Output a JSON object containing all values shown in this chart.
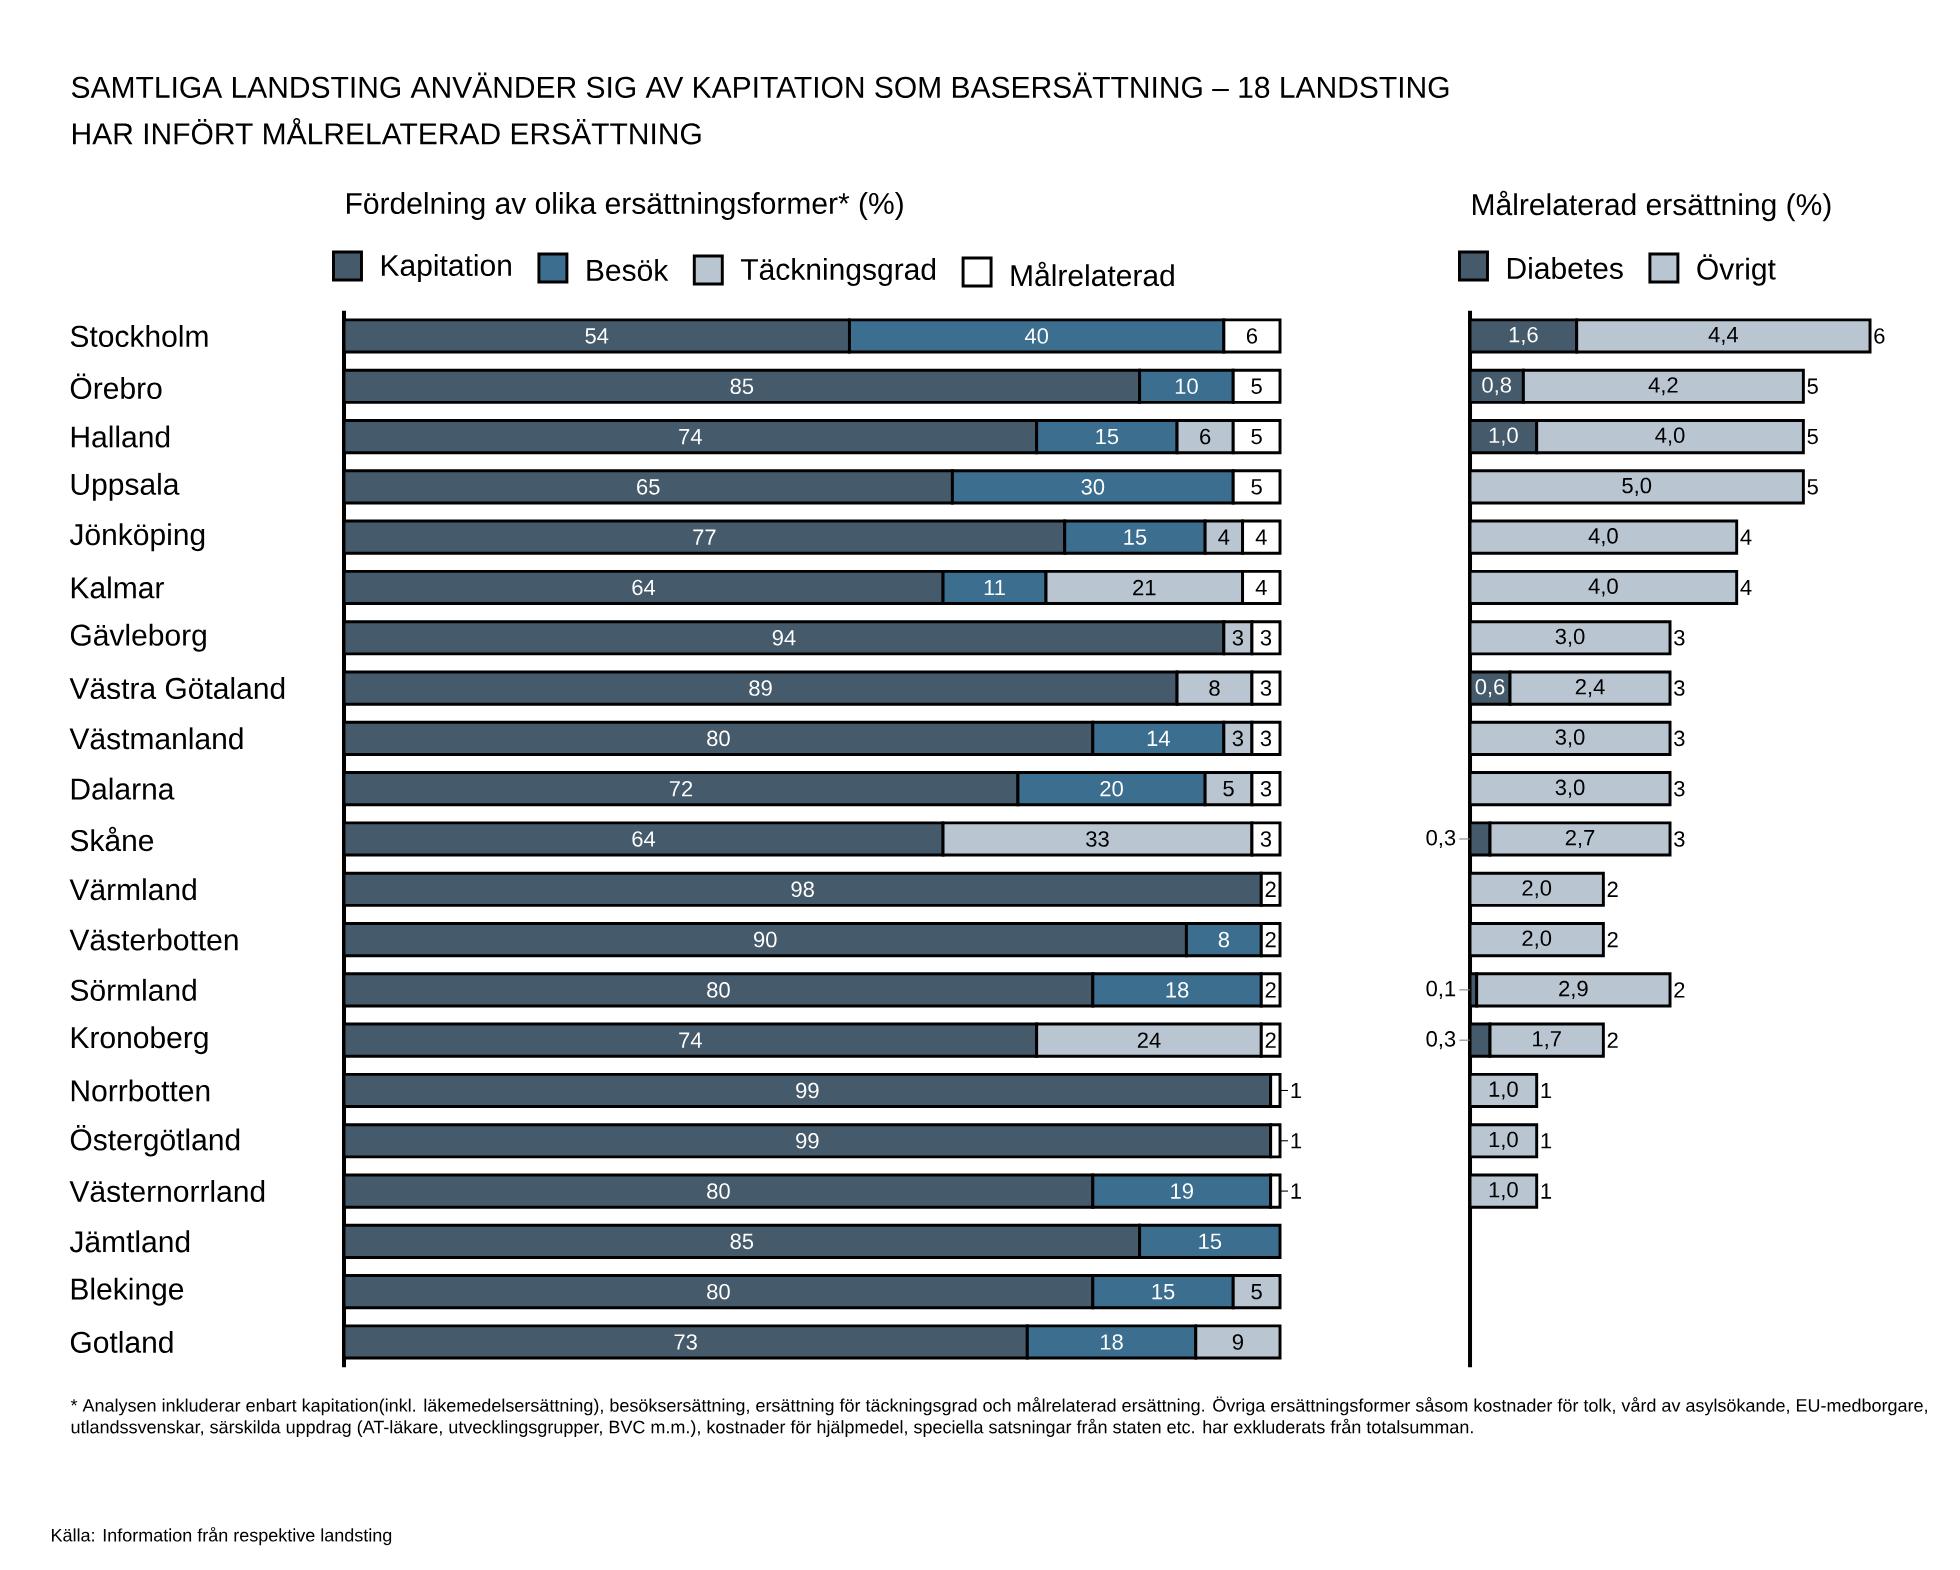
{
  "chart_data": [
    {
      "type": "bar",
      "orientation": "horizontal",
      "stacked": true,
      "data_labels": true,
      "legend": "top",
      "tick_labels": "y",
      "title": "SAMTLIGA LANDSTING ANVÄNDER SIG AV KAPITATION SOM BASERSÄTTNING – 18 LANDSTING HAR INFÖRT MÅLRELATERAD ERSÄTTNING",
      "subtitle": "Fördelning av olika ersättningsformer* (%)",
      "xlim": [
        0,
        100
      ],
      "categories": [
        "Stockholm",
        "Örebro",
        "Halland",
        "Uppsala",
        "Jönköping",
        "Kalmar",
        "Gävleborg",
        "Västra Götaland",
        "Västmanland",
        "Dalarna",
        "Skåne",
        "Värmland",
        "Västerbotten",
        "Sörmland",
        "Kronoberg",
        "Norrbotten",
        "Östergötland",
        "Västernorrland",
        "Jämtland",
        "Blekinge",
        "Gotland"
      ],
      "series": [
        {
          "name": "Kapitation",
          "color": "#455a6b",
          "values": [
            54,
            85,
            74,
            65,
            77,
            64,
            94,
            89,
            80,
            72,
            64,
            98,
            90,
            80,
            74,
            99,
            99,
            80,
            85,
            80,
            73
          ]
        },
        {
          "name": "Besök",
          "color": "#3b6e8f",
          "values": [
            40,
            10,
            15,
            30,
            15,
            11,
            null,
            null,
            14,
            20,
            null,
            null,
            8,
            18,
            null,
            null,
            null,
            19,
            15,
            15,
            18
          ]
        },
        {
          "name": "Täckningsgrad",
          "color": "#b9c6d2",
          "values": [
            null,
            null,
            6,
            null,
            4,
            21,
            3,
            8,
            3,
            5,
            33,
            null,
            null,
            null,
            24,
            null,
            null,
            null,
            null,
            5,
            9
          ]
        },
        {
          "name": "Målrelaterad",
          "color": "#ffffff",
          "values": [
            6,
            5,
            5,
            5,
            4,
            4,
            3,
            3,
            3,
            3,
            3,
            2,
            2,
            2,
            2,
            1,
            1,
            1,
            null,
            null,
            null
          ]
        }
      ],
      "annotations": [
        "* Analysen inkluderar enbart kapitation(inkl. läkemedelsersättning), besöksersättning, ersättning för täckningsgrad och målrelaterad ersättning. Övriga ersättningsformer såsom kostnader för tolk, vård av asylsökande, EU-medborgare, utlandssvenskar, särskilda uppdrag (AT-läkare, utvecklingsgrupper, BVC m.m.), kostnader för hjälpmedel, speciella satsningar från staten etc. har exkluderats från totalsumman.",
        "Källa: Information från respektive landsting"
      ]
    },
    {
      "type": "bar",
      "orientation": "horizontal",
      "stacked": true,
      "legend": "top",
      "tick_labels": false,
      "title": "Målrelaterad ersättning (%)",
      "xlim": [
        0,
        6
      ],
      "categories": [
        null,
        null,
        null,
        null,
        null,
        null,
        null,
        null,
        null,
        null,
        null,
        null,
        null,
        null,
        null,
        null,
        null,
        null,
        null,
        null,
        null
      ],
      "series": [
        {
          "name": "Diabetes",
          "color": "#455a6b",
          "values": [
            1.6,
            0.8,
            1.0,
            null,
            null,
            null,
            null,
            0.6,
            null,
            null,
            0.3,
            null,
            null,
            0.1,
            0.3,
            null,
            null,
            null,
            null,
            null,
            null
          ],
          "value_labels": [
            "1,6",
            "0,8",
            "1,0",
            null,
            null,
            null,
            null,
            "0,6",
            null,
            null,
            "0,3",
            null,
            null,
            "0,1",
            "0,3",
            null,
            null,
            null,
            null,
            null,
            null
          ]
        },
        {
          "name": "Övrigt",
          "color": "#b9c6d2",
          "values": [
            4.4,
            4.2,
            4.0,
            5.0,
            4.0,
            4.0,
            3.0,
            2.4,
            3.0,
            3.0,
            2.7,
            2.0,
            2.0,
            2.9,
            1.7,
            1.0,
            1.0,
            1.0,
            null,
            null,
            null
          ],
          "value_labels": [
            "4,4",
            "4,2",
            "4,0",
            "5,0",
            "4,0",
            "4,0",
            "3,0",
            "2,4",
            "3,0",
            "3,0",
            "2,7",
            "2,0",
            "2,0",
            "2,9",
            "1,7",
            "1,0",
            "1,0",
            "1,0",
            null,
            null,
            null
          ]
        }
      ],
      "totals": [
        "6",
        "5",
        "5",
        "5",
        "4",
        "4",
        "3",
        "3",
        "3",
        "3",
        "3",
        "2",
        "2",
        "2",
        "2",
        "1",
        "1",
        "1",
        null,
        null,
        null
      ]
    }
  ]
}
